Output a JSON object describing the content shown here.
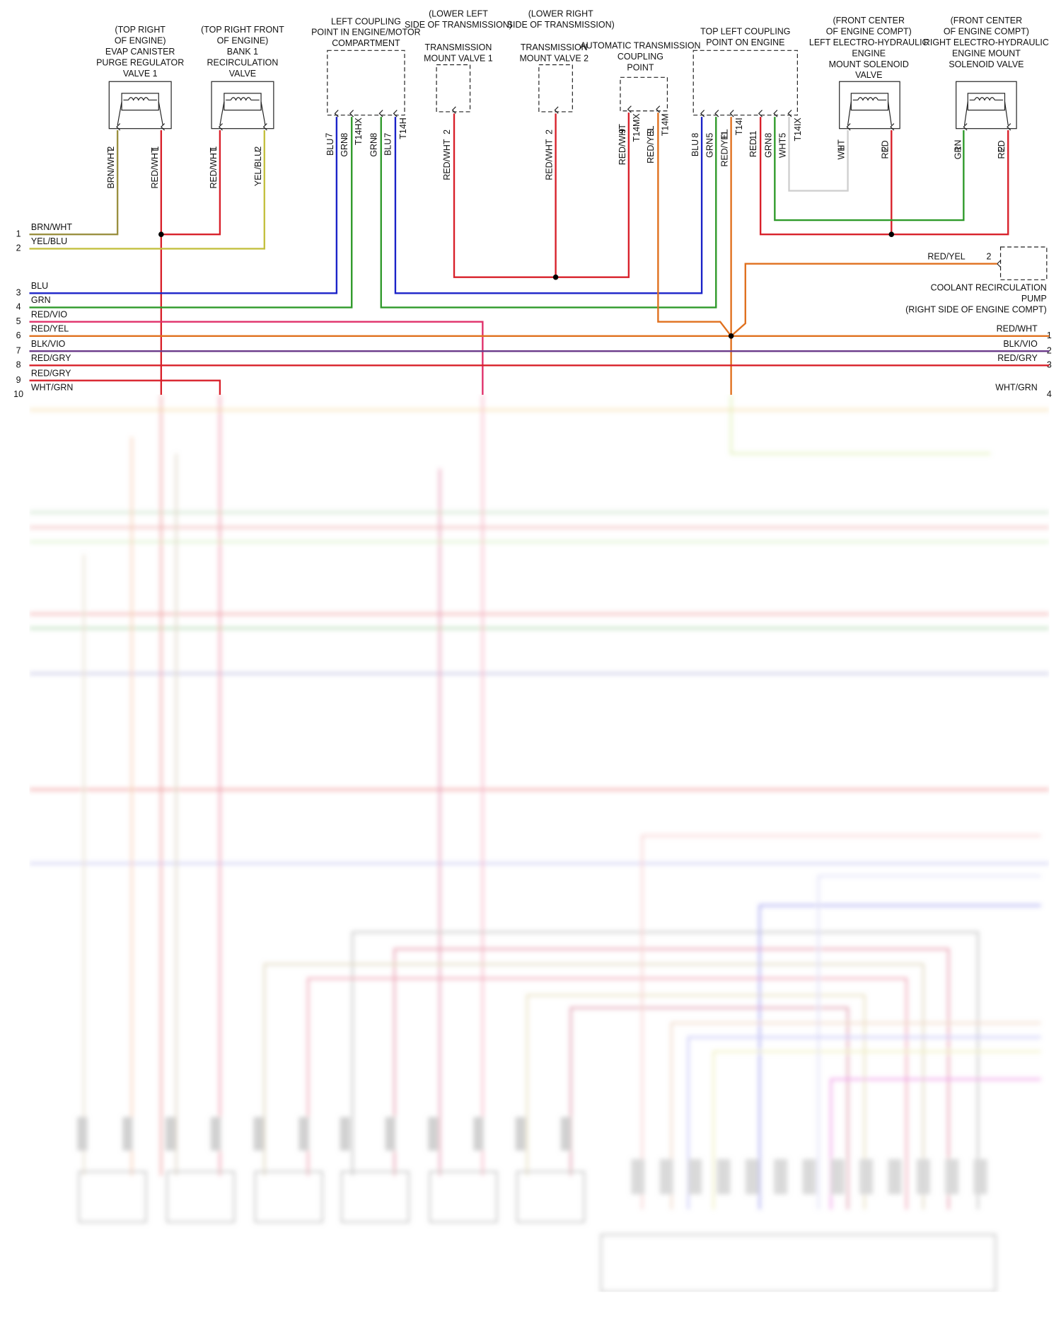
{
  "components": [
    {
      "label": [
        "(TOP RIGHT",
        "OF ENGINE)",
        "EVAP CANISTER",
        "PURGE REGULATOR",
        "VALVE 1"
      ],
      "pins": [
        "2",
        "1"
      ],
      "wires": [
        "BRN/WHT",
        "RED/WHT"
      ]
    },
    {
      "label": [
        "(TOP RIGHT FRONT",
        "OF ENGINE)",
        "BANK 1",
        "RECIRCULATION",
        "VALVE"
      ],
      "pins": [
        "1",
        "2"
      ],
      "wires": [
        "RED/WHT",
        "YEL/BLU"
      ]
    },
    {
      "label": [
        "LEFT COUPLING",
        "POINT IN ENGINE/MOTOR",
        "COMPARTMENT"
      ],
      "pins": [
        "7",
        "8",
        "T14HX",
        "8",
        "7",
        "T14H"
      ],
      "wires": [
        "BLU",
        "GRN",
        "GRN",
        "BLU"
      ]
    },
    {
      "label": [
        "(LOWER LEFT",
        "SIDE OF TRANSMISSION)",
        "TRANSMISSION",
        "MOUNT VALVE 1"
      ],
      "pins": [
        "2"
      ],
      "wires": [
        "RED/WHT"
      ]
    },
    {
      "label": [
        "(LOWER RIGHT",
        "SIDE OF TRANSMISSION)",
        "TRANSMISSION",
        "MOUNT VALVE 2"
      ],
      "pins": [
        "2"
      ],
      "wires": [
        "RED/WHT"
      ]
    },
    {
      "label": [
        "AUTOMATIC TRANSMISSION",
        "COUPLING",
        "POINT"
      ],
      "pins": [
        "9",
        "T14MX",
        "9",
        "T14M"
      ],
      "wires": [
        "RED/WHT",
        "RED/YEL"
      ]
    },
    {
      "label": [
        "TOP LEFT COUPLING",
        "POINT ON ENGINE"
      ],
      "pins": [
        "8",
        "5",
        "11",
        "T14I",
        "11",
        "8",
        "5",
        "T14IX"
      ],
      "wires": [
        "BLU",
        "GRN",
        "RED/YEL",
        "RED",
        "GRN",
        "WHT"
      ]
    },
    {
      "label": [
        "(FRONT CENTER",
        "OF ENGINE COMPT)",
        "LEFT ELECTRO-HYDRAULIC",
        "ENGINE",
        "MOUNT SOLENOID",
        "VALVE"
      ],
      "pins": [
        "1",
        "2"
      ],
      "wires": [
        "WHT",
        "RED"
      ]
    },
    {
      "label": [
        "(FRONT CENTER",
        "OF ENGINE COMPT)",
        "RIGHT ELECTRO-HYDRAULIC",
        "ENGINE MOUNT",
        "SOLENOID VALVE"
      ],
      "pins": [
        "1",
        "2"
      ],
      "wires": [
        "GRN",
        "RED"
      ]
    }
  ],
  "pump": {
    "label": [
      "COOLANT RECIRCULATION",
      "PUMP",
      "(RIGHT SIDE OF ENGINE COMPT)"
    ],
    "pin": "2",
    "wire": "RED/YEL"
  },
  "left_rows": [
    {
      "pin": "1",
      "label": "BRN/WHT"
    },
    {
      "pin": "2",
      "label": "YEL/BLU"
    },
    {
      "pin": "3",
      "label": "BLU"
    },
    {
      "pin": "4",
      "label": "GRN"
    },
    {
      "pin": "5",
      "label": "RED/VIO"
    },
    {
      "pin": "6",
      "label": "RED/YEL"
    },
    {
      "pin": "7",
      "label": "BLK/VIO"
    },
    {
      "pin": "8",
      "label": "RED/GRY"
    },
    {
      "pin": "9",
      "label": "RED/GRY"
    },
    {
      "pin": "10",
      "label": "WHT/GRN"
    }
  ],
  "right_rows": [
    {
      "pin": "1",
      "label": "RED/WHT"
    },
    {
      "pin": "2",
      "label": "BLK/VIO"
    },
    {
      "pin": "3",
      "label": "RED/GRY"
    },
    {
      "pin": "4",
      "label": "WHT/GRN"
    }
  ]
}
